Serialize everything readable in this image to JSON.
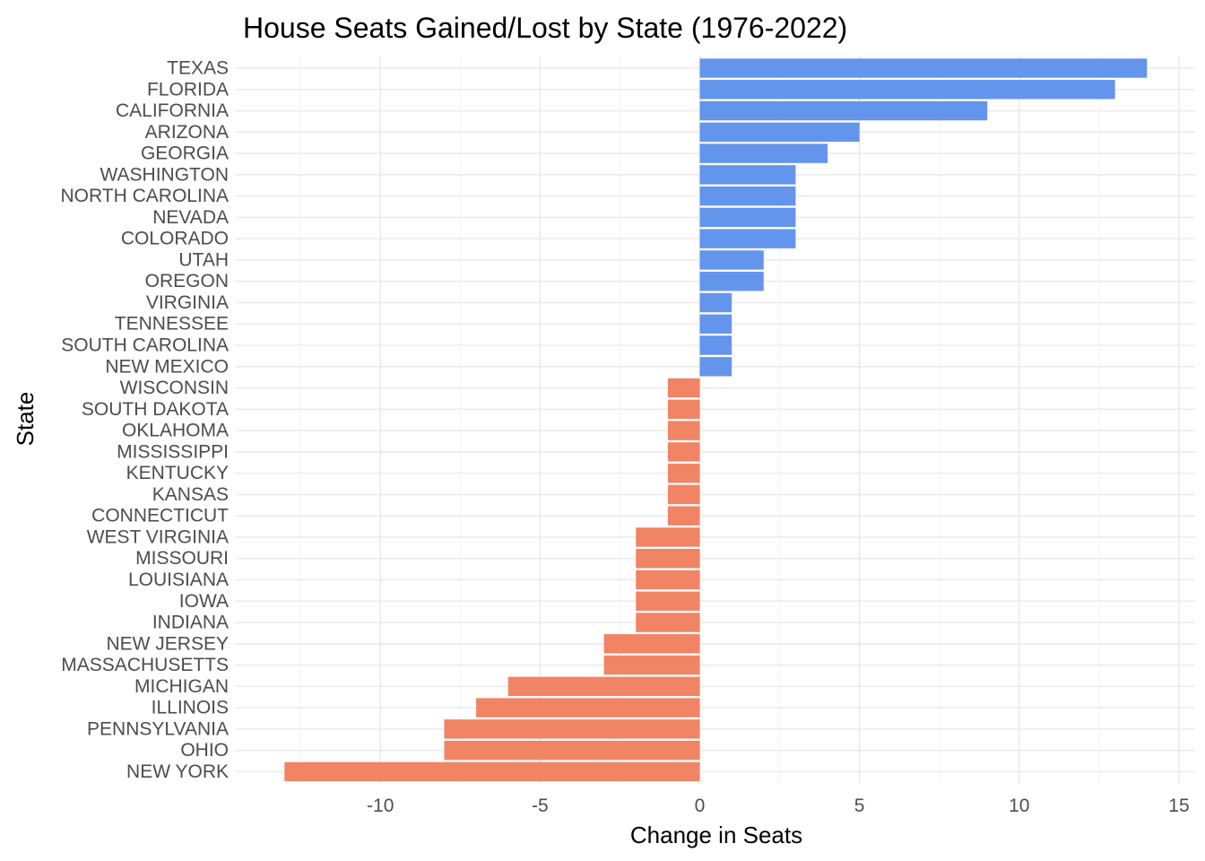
{
  "chart_data": {
    "type": "bar",
    "orientation": "horizontal",
    "title": "House Seats Gained/Lost by State (1976-2022)",
    "xlabel": "Change in Seats",
    "ylabel": "State",
    "xlim": [
      -14.5,
      15.5
    ],
    "xticks": [
      -10,
      -5,
      0,
      5,
      10,
      15
    ],
    "xtick_labels": [
      "-10",
      "-5",
      "0",
      "5",
      "10",
      "15"
    ],
    "grid": true,
    "legend": "none",
    "colors": {
      "gain": "#6495ED",
      "loss": "#F08465"
    },
    "categories": [
      "TEXAS",
      "FLORIDA",
      "CALIFORNIA",
      "ARIZONA",
      "GEORGIA",
      "WASHINGTON",
      "NORTH CAROLINA",
      "NEVADA",
      "COLORADO",
      "UTAH",
      "OREGON",
      "VIRGINIA",
      "TENNESSEE",
      "SOUTH CAROLINA",
      "NEW MEXICO",
      "WISCONSIN",
      "SOUTH DAKOTA",
      "OKLAHOMA",
      "MISSISSIPPI",
      "KENTUCKY",
      "KANSAS",
      "CONNECTICUT",
      "WEST VIRGINIA",
      "MISSOURI",
      "LOUISIANA",
      "IOWA",
      "INDIANA",
      "NEW JERSEY",
      "MASSACHUSETTS",
      "MICHIGAN",
      "ILLINOIS",
      "PENNSYLVANIA",
      "OHIO",
      "NEW YORK"
    ],
    "values": [
      14,
      13,
      9,
      5,
      4,
      3,
      3,
      3,
      3,
      2,
      2,
      1,
      1,
      1,
      1,
      -1,
      -1,
      -1,
      -1,
      -1,
      -1,
      -1,
      -2,
      -2,
      -2,
      -2,
      -2,
      -3,
      -3,
      -6,
      -7,
      -8,
      -8,
      -13
    ]
  }
}
